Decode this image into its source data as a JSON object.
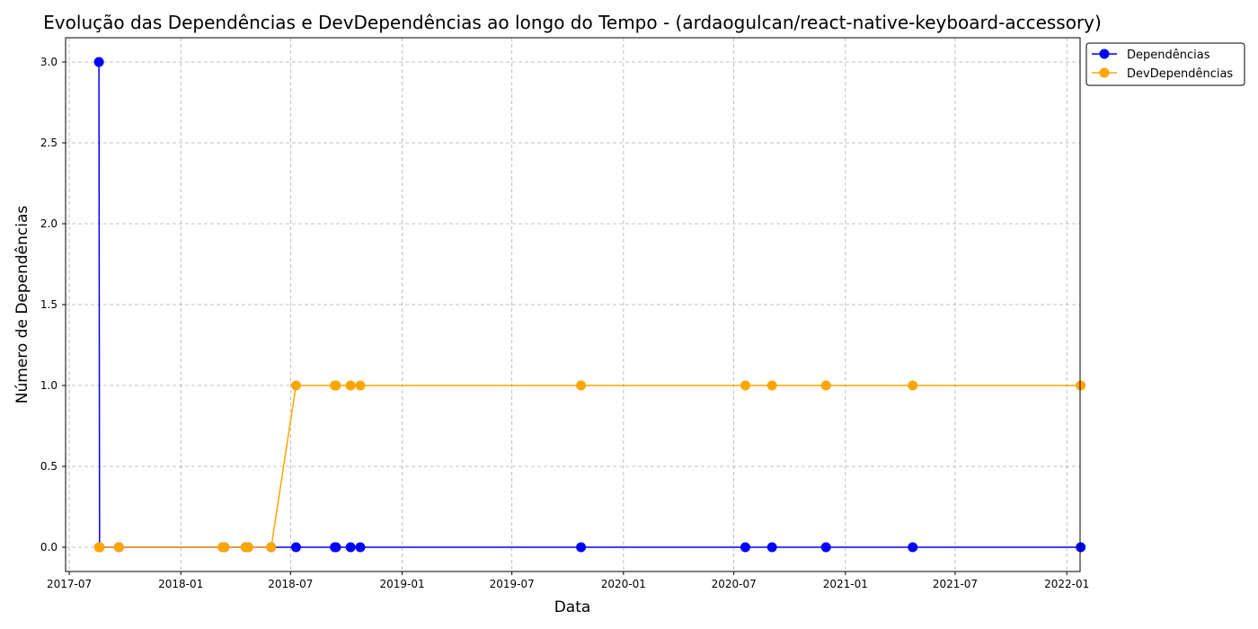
{
  "chart_data": {
    "type": "line",
    "title": "Evolução das Dependências e DevDependências ao longo do Tempo - (ardaogulcan/react-native-keyboard-accessory)",
    "xlabel": "Data",
    "ylabel": "Número de Dependências",
    "x_axis": "date",
    "xlim": [
      "2017-06-25",
      "2022-01-23"
    ],
    "ylim": [
      -0.15,
      3.15
    ],
    "x_ticks": [
      "2017-07",
      "2018-01",
      "2018-07",
      "2019-01",
      "2019-07",
      "2020-01",
      "2020-07",
      "2021-01",
      "2021-07",
      "2022-01"
    ],
    "y_ticks": [
      "0.0",
      "0.5",
      "1.0",
      "1.5",
      "2.0",
      "2.5",
      "3.0"
    ],
    "grid": true,
    "legend_position": "outside-top-right",
    "x": [
      "2017-08-19",
      "2017-08-20",
      "2017-09-21",
      "2018-03-11",
      "2018-03-14",
      "2018-04-18",
      "2018-04-22",
      "2018-05-30",
      "2018-07-10",
      "2018-09-12",
      "2018-09-14",
      "2018-10-08",
      "2018-10-24",
      "2019-10-23",
      "2020-07-20",
      "2020-09-02",
      "2020-11-30",
      "2021-04-22",
      "2022-01-24"
    ],
    "series": [
      {
        "name": "Dependências",
        "color": "#0000ff",
        "values": [
          3,
          0,
          0,
          0,
          0,
          0,
          0,
          0,
          0,
          0,
          0,
          0,
          0,
          0,
          0,
          0,
          0,
          0,
          0
        ]
      },
      {
        "name": "DevDependências",
        "color": "#ffa500",
        "values": [
          0,
          0,
          0,
          0,
          0,
          0,
          0,
          0,
          1,
          1,
          1,
          1,
          1,
          1,
          1,
          1,
          1,
          1,
          1
        ]
      }
    ]
  }
}
